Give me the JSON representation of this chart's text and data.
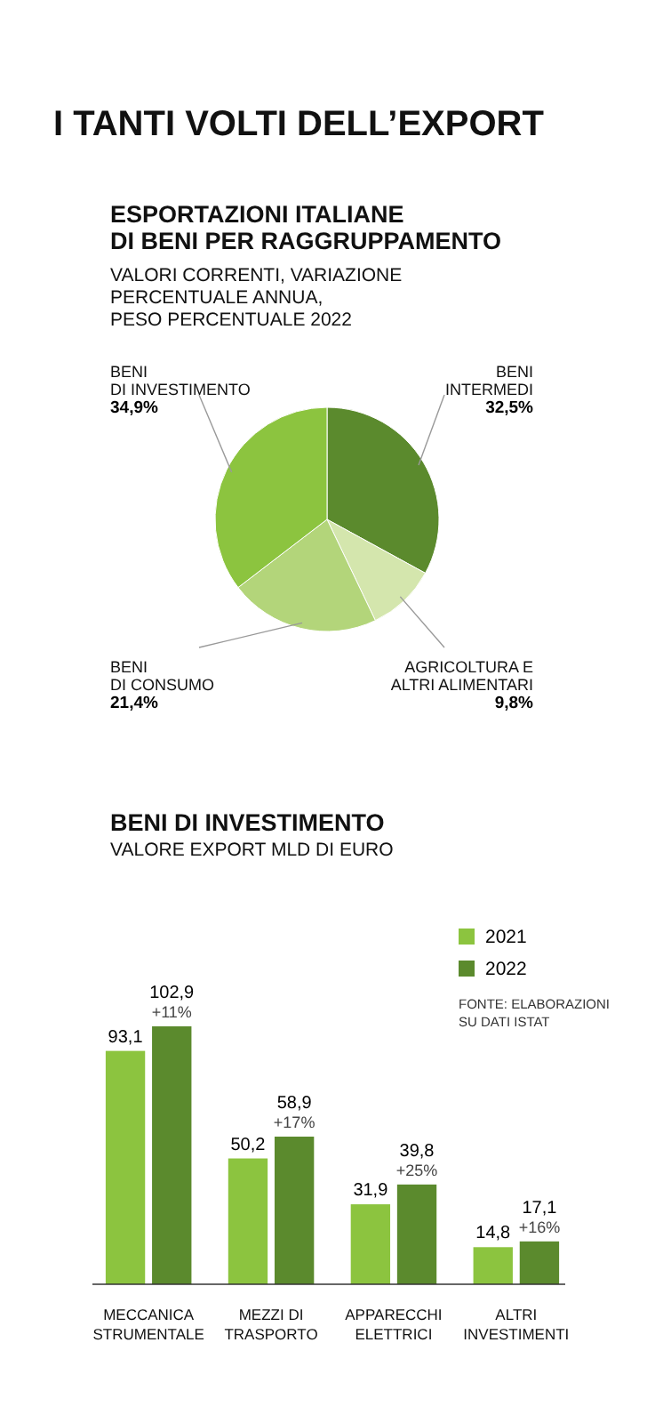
{
  "chart_data": [
    {
      "type": "other",
      "title": "I TANTI VOLTI DELL’EXPORT"
    },
    {
      "type": "pie",
      "title": "ESPORTAZIONI ITALIANE\nDI BENI PER RAGGRUPPAMENTO",
      "subtitle": "VALORI CORRENTI, VARIAZIONE\nPERCENTUALE ANNUA,\nPESO PERCENTUALE 2022",
      "categories": [
        "BENI\nINTERMEDI",
        "AGRICOLTURA E\nALTRI ALIMENTARI",
        "BENI\nDI CONSUMO",
        "BENI\nDI INVESTIMENTO"
      ],
      "values": [
        32.5,
        9.8,
        21.4,
        34.9
      ],
      "colors": [
        "#5b8a2d",
        "#d4e6ad",
        "#b3d57a",
        "#8cc43f"
      ],
      "value_labels": [
        "32,5%",
        "9,8%",
        "21,4%",
        "34,9%"
      ]
    },
    {
      "type": "bar",
      "title": "BENI DI INVESTIMENTO",
      "subtitle": "VALORE EXPORT MLD DI EURO",
      "categories": [
        "MECCANICA\nSTRUMENTALE",
        "MEZZI DI\nTRASPORTO",
        "APPARECCHI\nELETTRICI",
        "ALTRI\nINVESTIMENTI"
      ],
      "series": [
        {
          "name": "2021",
          "color": "#8cc43f",
          "values": [
            93.1,
            50.2,
            31.9,
            14.8
          ],
          "value_labels": [
            "93,1",
            "50,2",
            "31,9",
            "14,8"
          ]
        },
        {
          "name": "2022",
          "color": "#5b8a2d",
          "values": [
            102.9,
            58.9,
            39.8,
            17.1
          ],
          "value_labels": [
            "102,9",
            "58,9",
            "39,8",
            "17,1"
          ]
        }
      ],
      "legend": "top right",
      "annotations": [
        {
          "text": "+11%",
          "x": "MECCANICA\nSTRUMENTALE",
          "y": 102.9
        },
        {
          "text": "+17%",
          "x": "MEZZI DI\nTRASPORTO",
          "y": 58.9
        },
        {
          "text": "+25%",
          "x": "APPARECCHI\nELETTRICI",
          "y": 39.8
        },
        {
          "text": "+16%",
          "x": "ALTRI\nINVESTIMENTI",
          "y": 17.1
        },
        "FONTE: ELABORAZIONI\nSU DATI ISTAT"
      ]
    }
  ]
}
